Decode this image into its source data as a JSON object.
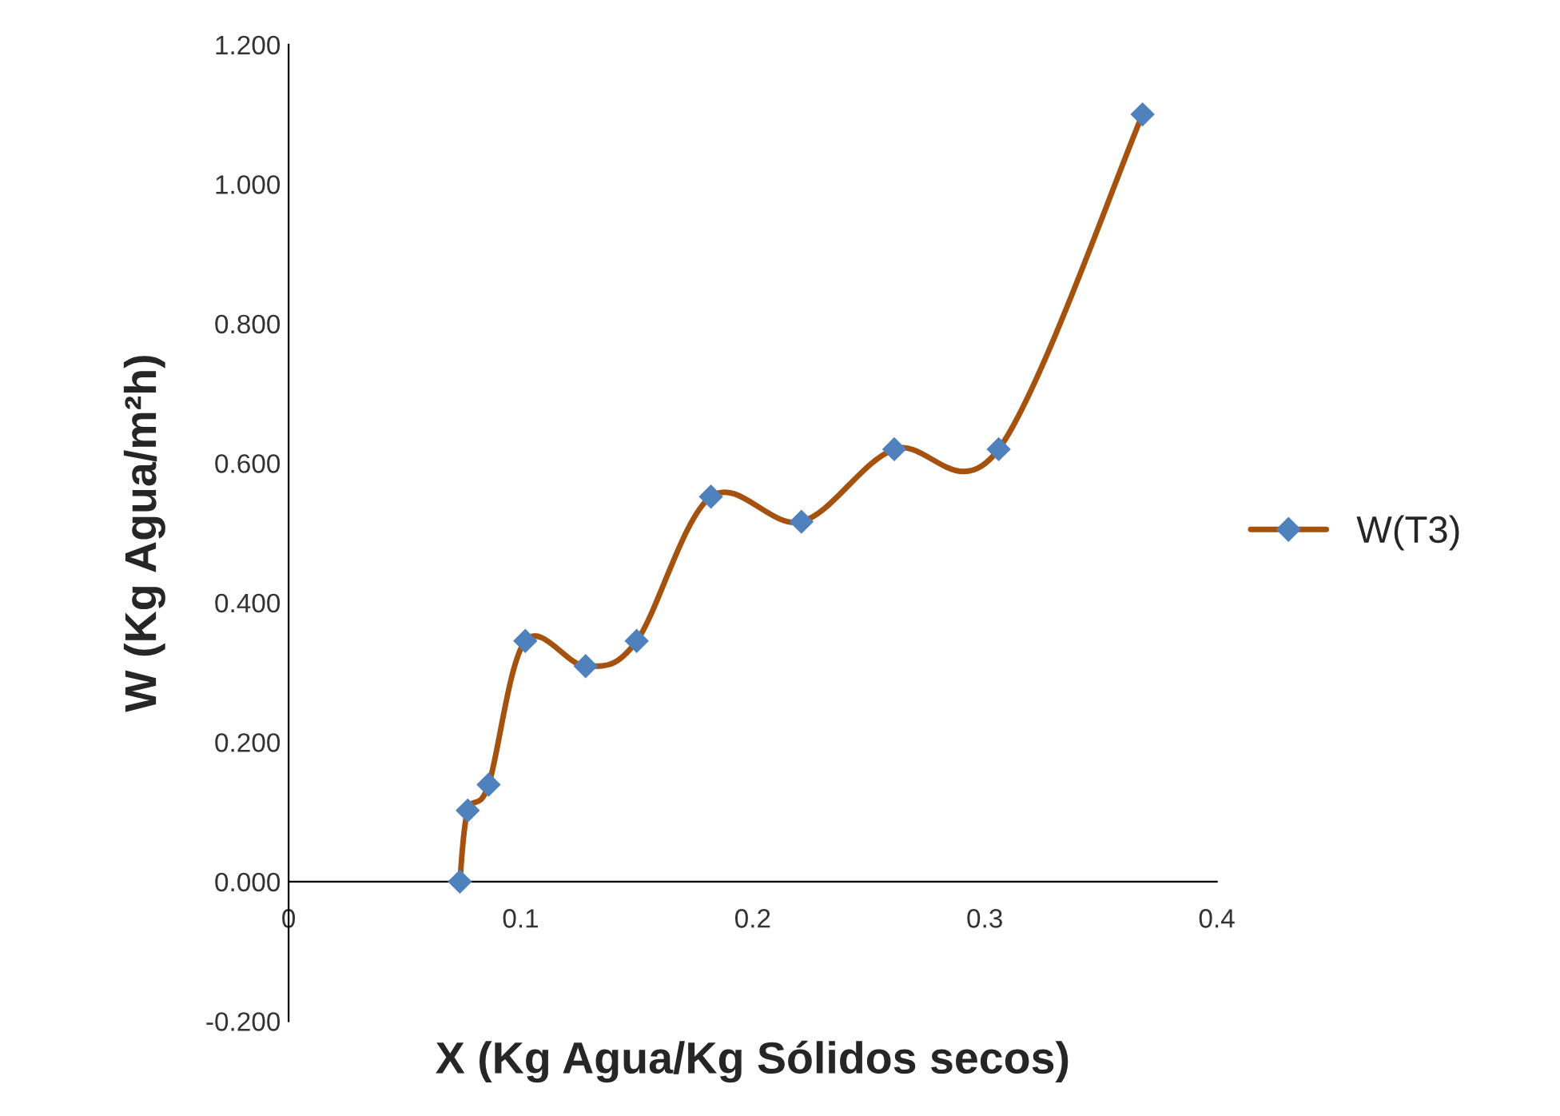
{
  "chart_data": {
    "type": "line",
    "xlabel": "X (Kg Agua/Kg Sólidos secos)",
    "ylabel": "W (Kg Agua/m²h)",
    "series": [
      {
        "name": "W(T3)",
        "color": "#a5520f",
        "colors": [
          "#4f81bd",
          "#4f81bd",
          "#4f81bd",
          "#4f81bd",
          "#4f81bd",
          "#4f81bd",
          "#4f81bd",
          "#4f81bd",
          "#4f81bd",
          "#4f81bd",
          "#4f81bd"
        ],
        "x": [
          0.0738,
          0.0772,
          0.0862,
          0.102,
          0.128,
          0.15,
          0.182,
          0.221,
          0.261,
          0.306,
          0.368
        ],
        "values": [
          0.0,
          0.102,
          0.139,
          0.345,
          0.309,
          0.345,
          0.552,
          0.516,
          0.62,
          0.62,
          1.1
        ]
      }
    ],
    "xlim": [
      0,
      0.4
    ],
    "xticks": [
      0,
      0.1,
      0.2,
      0.3,
      0.4
    ],
    "ylim": [
      -0.2,
      1.2
    ],
    "yticks": [
      {
        "value": -0.2,
        "label": "-0.200"
      },
      {
        "value": 0,
        "label": "0.000"
      },
      {
        "value": 0.2,
        "label": "0.200"
      },
      {
        "value": 0.4,
        "label": "0.400"
      },
      {
        "value": 0.6,
        "label": "0.600"
      },
      {
        "value": 0.8,
        "label": "0.800"
      },
      {
        "value": 1.0,
        "label": "1.000"
      },
      {
        "value": 1.2,
        "label": "1.200"
      }
    ],
    "marker": "diamond",
    "line_style": "solid",
    "grid": false,
    "legend": "right"
  }
}
